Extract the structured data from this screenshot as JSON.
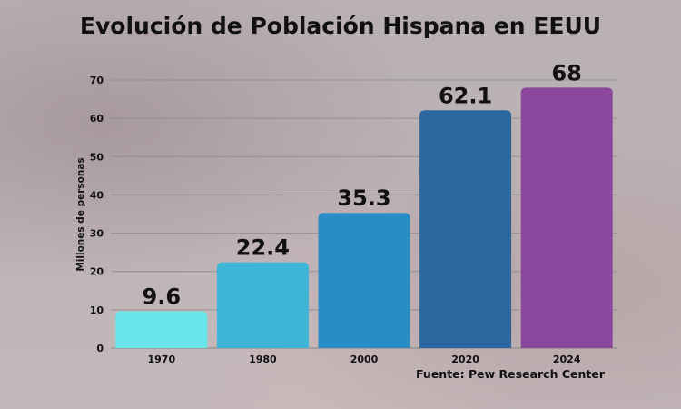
{
  "chart_data": {
    "type": "bar",
    "title": "Evolución de Población Hispana en EEUU",
    "ylabel": "Millones de personas",
    "xlabel": "",
    "categories": [
      "1970",
      "1980",
      "2000",
      "2020",
      "2024"
    ],
    "values": [
      9.6,
      22.4,
      35.3,
      62.1,
      68
    ],
    "data_labels": [
      "9.6",
      "22.4",
      "35.3",
      "62.1",
      "68"
    ],
    "ylim": [
      0,
      70
    ],
    "yticks": [
      0,
      10,
      20,
      30,
      40,
      50,
      60,
      70
    ],
    "grid": true,
    "colors": [
      "#6ae6ea",
      "#3db5d6",
      "#2a8cc4",
      "#2d67a0",
      "#8a479c"
    ],
    "source": "Fuente: Pew Research Center"
  }
}
